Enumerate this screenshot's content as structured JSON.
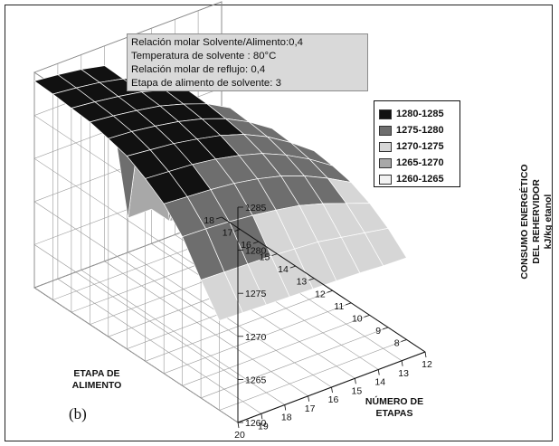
{
  "chart_data": {
    "type": "surface3d",
    "panel_label": "(b)",
    "info_box": [
      "Relación molar Solvente/Alimento:0,4",
      "Temperatura de solvente : 80°C",
      "Relación molar de reflujo: 0,4",
      "Etapa de alimento de solvente: 3"
    ],
    "x_axis": {
      "label_lines": [
        "ETAPA DE",
        "ALIMENTO"
      ],
      "range": [
        7,
        18
      ],
      "ticks": [
        8,
        9,
        10,
        11,
        12,
        13,
        14,
        15,
        16,
        17,
        18
      ]
    },
    "y_axis": {
      "label_lines": [
        "NÚMERO DE",
        "ETAPAS"
      ],
      "range": [
        12,
        20
      ],
      "ticks": [
        12,
        13,
        14,
        15,
        16,
        17,
        18,
        19,
        20
      ]
    },
    "z_axis": {
      "label_lines": [
        "CONSUMO ENERGÉTICO",
        "DEL REHERVIDOR",
        "kJ/kg etanol"
      ],
      "range": [
        1260,
        1285
      ],
      "ticks": [
        1260,
        1265,
        1270,
        1275,
        1280,
        1285
      ]
    },
    "legend": [
      {
        "label": "1280-1285",
        "color": "#111111"
      },
      {
        "label": "1275-1280",
        "color": "#6e6e6e"
      },
      {
        "label": "1270-1275",
        "color": "#d6d6d6"
      },
      {
        "label": "1265-1270",
        "color": "#a8a8a8"
      },
      {
        "label": "1260-1265",
        "color": "#f2f2f2"
      }
    ],
    "grid": true,
    "surface": {
      "feed_stage": [
        8,
        9,
        10,
        11,
        12,
        13,
        14,
        15,
        16,
        17,
        18
      ],
      "num_stages": [
        12,
        13,
        14,
        15,
        16,
        17,
        18,
        19,
        20
      ],
      "z": [
        [
          1269.5,
          1269.6,
          1269.8,
          1269.9,
          1270.0,
          1270.1,
          1270.2,
          1270.3,
          1270.4
        ],
        [
          1271.5,
          1272.0,
          1272.5,
          1273.0,
          1273.2,
          1273.4,
          1273.5,
          1273.6,
          1273.7
        ],
        [
          1273.0,
          1274.0,
          1275.0,
          1275.8,
          1276.3,
          1276.7,
          1277.0,
          1277.2,
          1277.3
        ],
        [
          1274.0,
          1275.5,
          1276.8,
          1277.8,
          1278.5,
          1279.0,
          1279.3,
          1279.5,
          1279.7
        ],
        [
          1274.5,
          1276.3,
          1277.8,
          1279.0,
          1279.8,
          1280.4,
          1280.8,
          1281.0,
          1281.2
        ],
        [
          1274.8,
          1276.8,
          1278.5,
          1279.8,
          1280.7,
          1281.3,
          1281.8,
          1282.1,
          1282.4
        ],
        [
          1264.0,
          1277.0,
          1278.8,
          1280.2,
          1281.2,
          1281.9,
          1282.4,
          1282.8,
          1283.0
        ],
        [
          1264.0,
          1264.0,
          1279.0,
          1280.5,
          1281.5,
          1282.3,
          1282.8,
          1283.2,
          1283.5
        ],
        [
          1264.0,
          1264.0,
          1264.0,
          1280.6,
          1281.7,
          1282.5,
          1283.0,
          1283.4,
          1283.7
        ],
        [
          1264.0,
          1264.0,
          1264.0,
          1264.0,
          1281.8,
          1282.6,
          1283.2,
          1283.6,
          1283.9
        ],
        [
          1264.0,
          1264.0,
          1264.0,
          1264.0,
          1264.0,
          1282.7,
          1283.3,
          1283.7,
          1284.0
        ]
      ]
    }
  }
}
